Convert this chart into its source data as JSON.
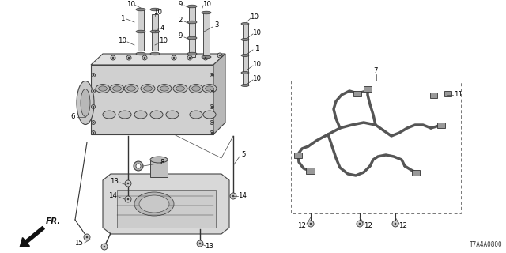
{
  "bg_color": "#ffffff",
  "diagram_id": "T7A4A0800",
  "line_color": "#333333",
  "label_color": "#000000",
  "part_fill": "#e8e8e8",
  "part_edge": "#444444"
}
